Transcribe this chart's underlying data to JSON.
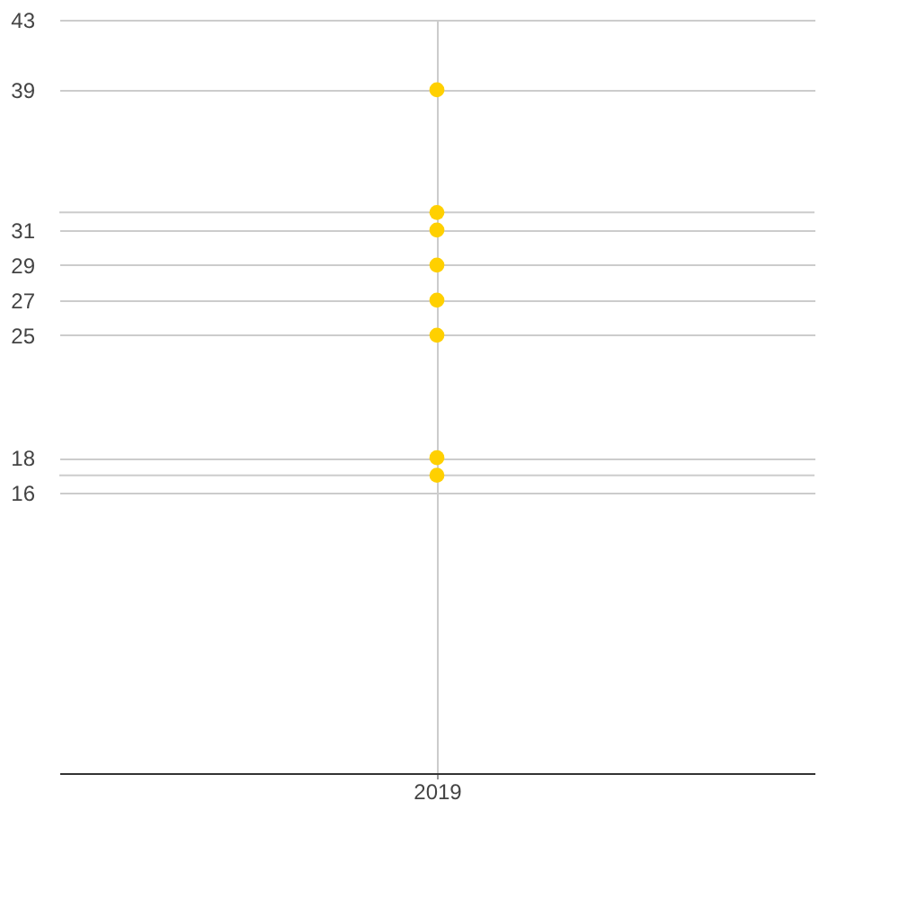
{
  "chart_data": {
    "type": "scatter",
    "categories": [
      "2019"
    ],
    "series": [
      {
        "color": "#ffd000",
        "values": [
          39
        ]
      },
      {
        "color": "#ffd000",
        "values": [
          32
        ]
      },
      {
        "color": "#ffd000",
        "values": [
          31
        ]
      },
      {
        "color": "#ffd000",
        "values": [
          29
        ]
      },
      {
        "color": "#ffd000",
        "values": [
          27
        ]
      },
      {
        "color": "#ffd000",
        "values": [
          25
        ]
      },
      {
        "color": "#ffd000",
        "values": [
          18
        ]
      },
      {
        "color": "#ffd000",
        "values": [
          17
        ]
      }
    ],
    "ylim": [
      0,
      43
    ],
    "yticks": [
      16,
      {
        "value": 17,
        "label": null
      },
      18,
      25,
      27,
      29,
      31,
      {
        "value": 32,
        "label": null
      },
      39,
      43
    ],
    "grid": true,
    "marker": "circle"
  }
}
